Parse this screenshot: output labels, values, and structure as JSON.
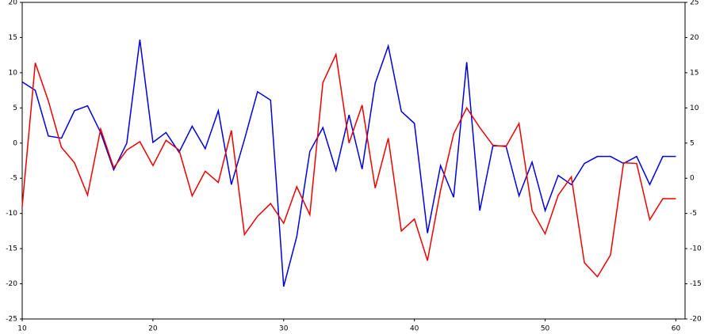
{
  "chart_data": {
    "type": "line",
    "x": [
      10,
      11,
      12,
      13,
      14,
      15,
      16,
      17,
      18,
      19,
      20,
      21,
      22,
      23,
      24,
      25,
      26,
      27,
      28,
      29,
      30,
      31,
      32,
      33,
      34,
      35,
      36,
      37,
      38,
      39,
      40,
      41,
      42,
      43,
      44,
      45,
      46,
      47,
      48,
      49,
      50,
      51,
      52,
      53,
      54,
      55,
      56,
      57,
      58,
      59,
      60
    ],
    "series": [
      {
        "color": "#0000dd",
        "values": [
          8.7,
          7.5,
          1,
          0.7,
          4.6,
          5.3,
          1.5,
          -3.8,
          0,
          14.7,
          0.1,
          1.5,
          -1.3,
          2.4,
          -0.8,
          4.6,
          -5.9,
          0.5,
          7.3,
          6.1,
          -20.4,
          -13.3,
          -1.2,
          2.2,
          -3.9,
          4,
          -3.7,
          8.5,
          13.8,
          4.5,
          2.8,
          -12.8,
          -3.2,
          -7.7,
          11.5,
          -9.6,
          -0.4,
          -0.4,
          -7.5,
          -2.7,
          -9.6,
          -4.6,
          -5.9,
          -2.9,
          -1.9,
          -1.9,
          -2.9,
          -1.9,
          -5.9,
          -1.9,
          -1.9
        ]
      },
      {
        "color": "#ee0000",
        "axis": "y2",
        "values": [
          -4,
          16.4,
          11,
          4.4,
          2.2,
          -2.4,
          7,
          1.5,
          4,
          5.2,
          1.8,
          5.4,
          4,
          -2.5,
          1,
          -0.6,
          6.8,
          -8,
          -5.4,
          -3.6,
          -6.4,
          -1.2,
          -5.2,
          13.6,
          17.6,
          5,
          10.4,
          -1.4,
          5.7,
          -7.5,
          -5.8,
          -11.7,
          -1.7,
          6.3,
          10,
          7.2,
          4.7,
          4.5,
          7.8,
          -4.6,
          -7.9,
          -2.4,
          0.2,
          -12,
          -14,
          -10.9,
          2.2,
          2.1,
          -5.9,
          -2.9,
          -2.9
        ]
      }
    ],
    "xlim": [
      10,
      60.7
    ],
    "xticks": [
      10,
      20,
      30,
      40,
      50,
      60
    ],
    "ylim": [
      -25,
      20
    ],
    "yticks": [
      -25,
      -20,
      -15,
      -10,
      -5,
      0,
      5,
      10,
      15,
      20
    ],
    "y2lim": [
      -20,
      25
    ],
    "y2ticks": [
      -20,
      -15,
      -10,
      -5,
      0,
      5,
      10,
      15,
      20,
      25
    ],
    "grid": true
  }
}
